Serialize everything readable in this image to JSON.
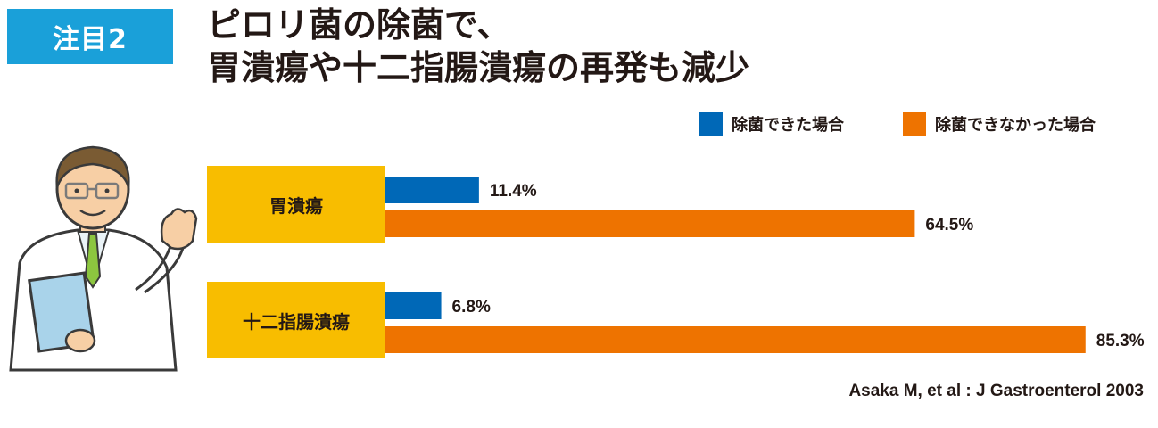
{
  "badge": "注目2",
  "title_line1": "ピロリ菌の除菌で、",
  "title_line2": "胃潰瘍や十二指腸潰瘍の再発も減少",
  "source": "Asaka M, et al : J Gastroenterol 2003",
  "colors": {
    "badge": "#1aa0d9",
    "category_box": "#f8bd00",
    "eradicated": "#0068b7",
    "not_eradicated": "#ee7300"
  },
  "chart_data": {
    "type": "bar",
    "orientation": "horizontal",
    "categories": [
      "胃潰瘍",
      "十二指腸潰瘍"
    ],
    "series": [
      {
        "name": "除菌できた場合",
        "values": [
          11.4,
          6.8
        ],
        "labels": [
          "11.4%",
          "6.8%"
        ],
        "color": "#0068b7"
      },
      {
        "name": "除菌できなかった場合",
        "values": [
          64.5,
          85.3
        ],
        "labels": [
          "64.5%",
          "85.3%"
        ],
        "color": "#ee7300"
      }
    ],
    "xlim": [
      0,
      100
    ],
    "legend": "top-right",
    "grid": false
  }
}
